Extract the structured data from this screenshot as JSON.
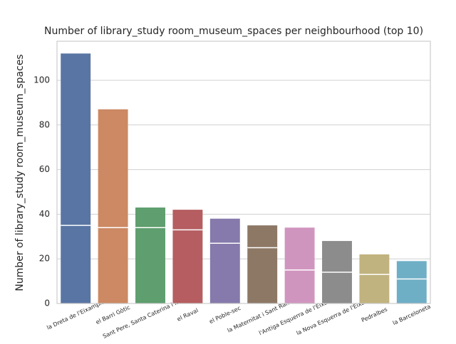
{
  "chart_data": {
    "type": "bar",
    "title": "Number of library_study room_museum_spaces per neighbourhood (top 10)",
    "y_label": "Number of library_study room_museum_spaces",
    "categories": [
      "la Dreta de l'Eixample",
      "el Barri Gòtic",
      "Sant Pere, Santa Caterina i la Ribera",
      "el Raval",
      "el Poble-sec",
      "la Maternitat i Sant Ramon",
      "l'Antiga Esquerra de l'Eixample",
      "la Nova Esquerra de l'Eixample",
      "Pedralbes",
      "la Barceloneta"
    ],
    "series": [
      {
        "values": [
          112,
          87,
          43,
          42,
          38,
          35,
          34,
          28,
          22,
          19
        ]
      },
      {
        "values": [
          35,
          34,
          34,
          33,
          27,
          25,
          15,
          14,
          13,
          11
        ]
      }
    ],
    "colors": [
      "#5975a4",
      "#cc8963",
      "#5f9e6e",
      "#b55d60",
      "#857aab",
      "#8d7866",
      "#d095bf",
      "#8c8c8c",
      "#c1b37f",
      "#6fafc6"
    ],
    "ylim": [
      0,
      117.5
    ],
    "yticks": [
      0,
      20,
      40,
      60,
      80,
      100
    ],
    "grid": true
  }
}
